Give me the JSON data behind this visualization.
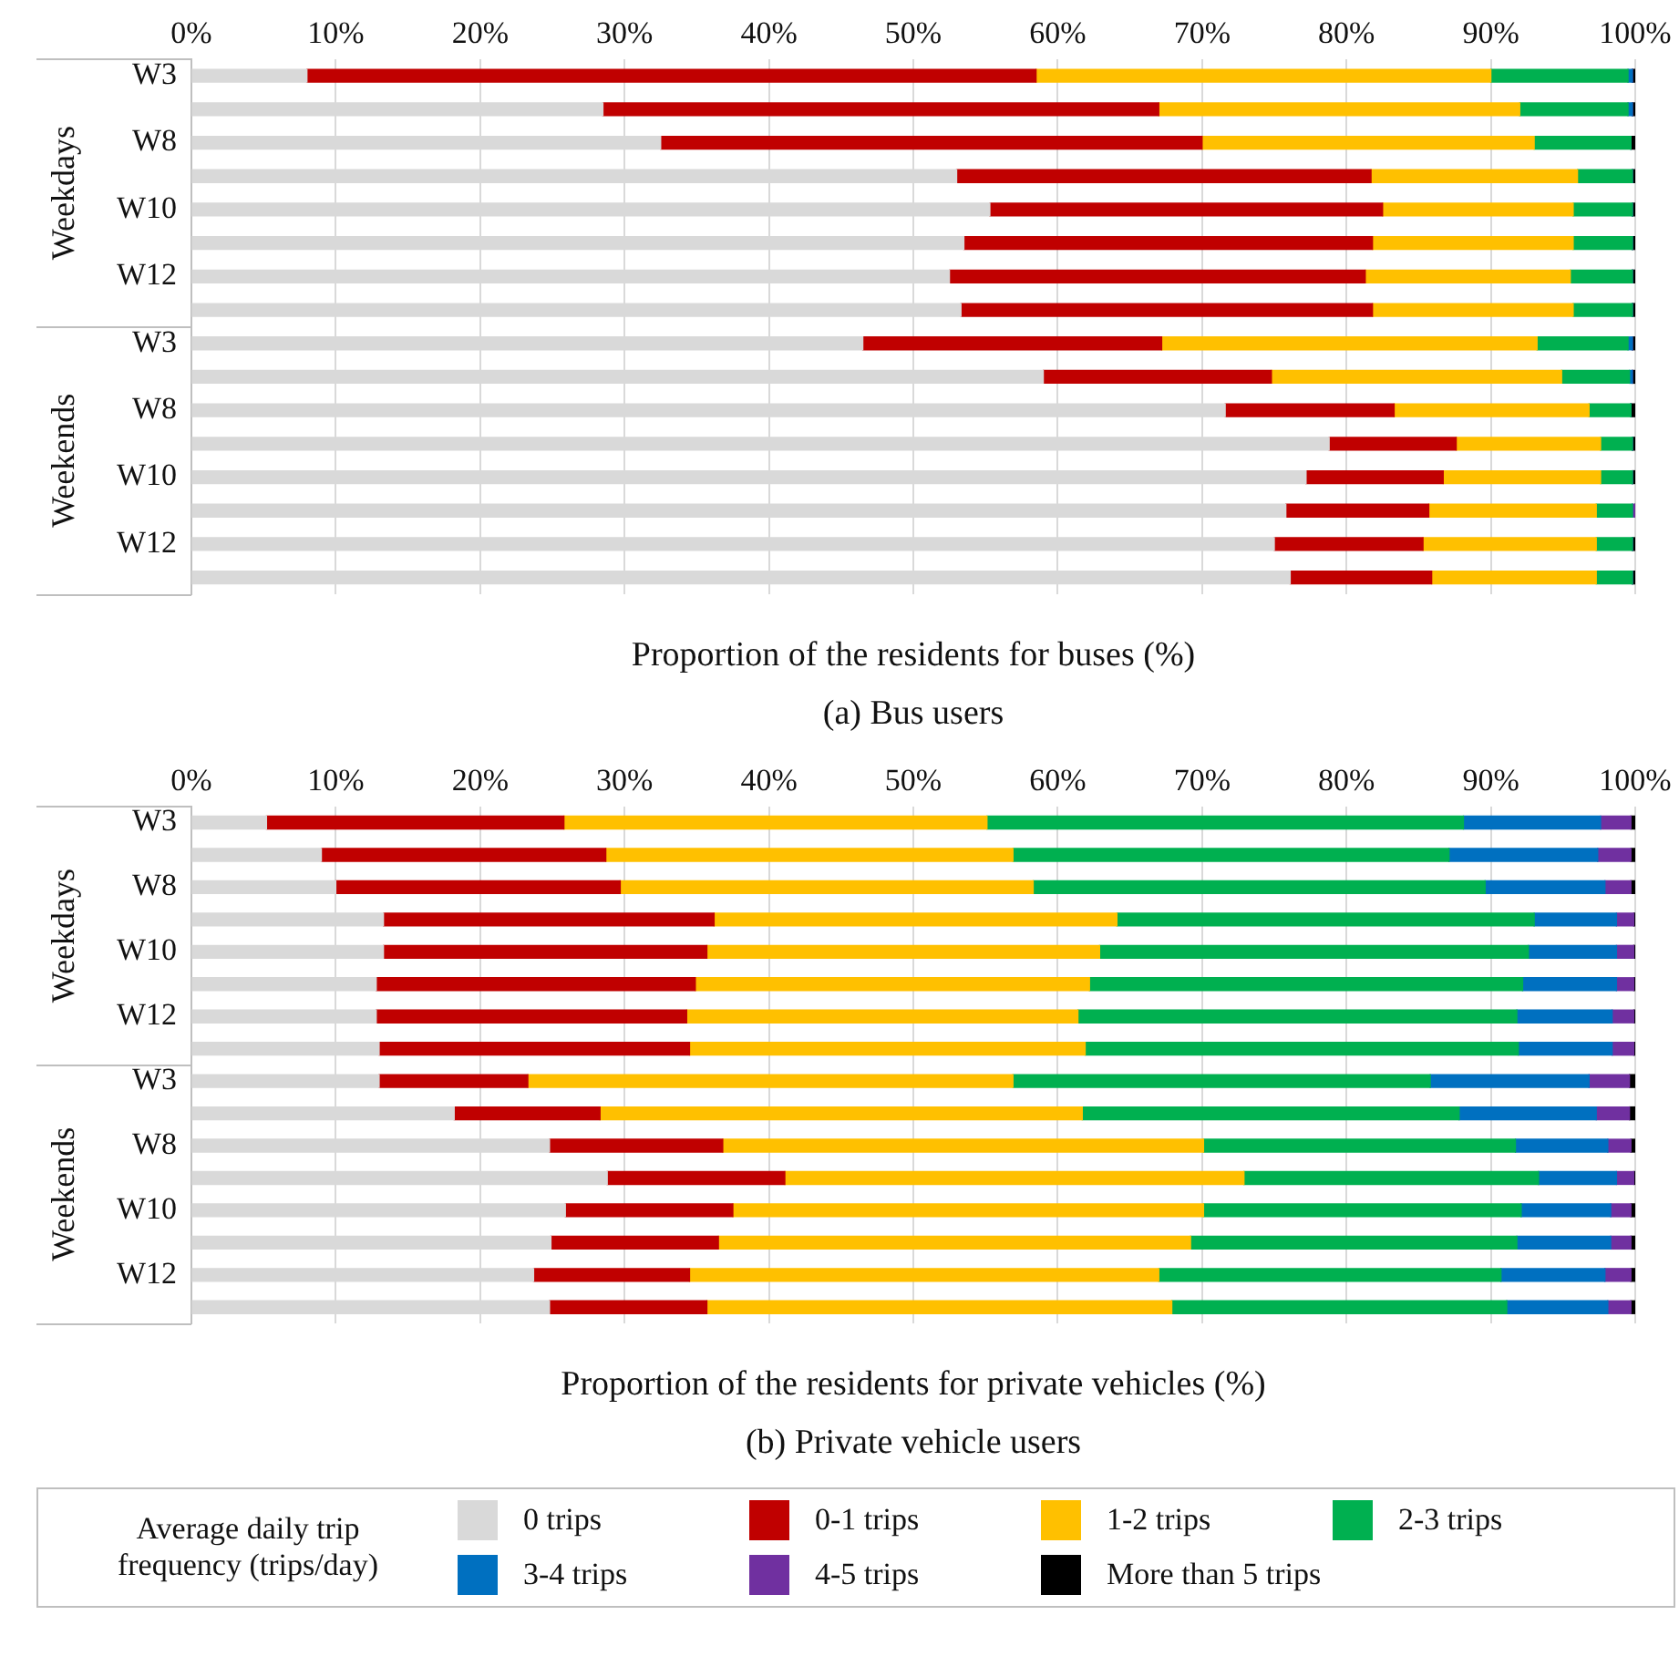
{
  "chart_data": [
    {
      "type": "bar",
      "orientation": "horizontal",
      "stacked": true,
      "title": "(a) Bus users",
      "xlabel": "Proportion of the residents for buses (%)",
      "categories": [
        "W3",
        null,
        "W8",
        null,
        "W10",
        null,
        "W12",
        null,
        "W3",
        null,
        "W8",
        null,
        "W10",
        null,
        "W12",
        null
      ],
      "annotations": [
        "Weekdays",
        "Weekends"
      ],
      "xlim": [
        0,
        100
      ],
      "xticks": [
        {
          "value": 0,
          "label": "0%"
        },
        {
          "value": 10,
          "label": "10%"
        },
        {
          "value": 20,
          "label": "20%"
        },
        {
          "value": 30,
          "label": "30%"
        },
        {
          "value": 40,
          "label": "40%"
        },
        {
          "value": 50,
          "label": "50%"
        },
        {
          "value": 60,
          "label": "60%"
        },
        {
          "value": 70,
          "label": "70%"
        },
        {
          "value": 80,
          "label": "80%"
        },
        {
          "value": 90,
          "label": "90%"
        },
        {
          "value": 100,
          "label": "100%"
        }
      ],
      "grid": "x",
      "legend": false,
      "series": [
        {
          "color": "#d9d9d9",
          "values": [
            8,
            28.5,
            32.5,
            53,
            55.3,
            53.5,
            52.5,
            53.3,
            46.5,
            59,
            71.6,
            78.8,
            77.2,
            75.8,
            75,
            76.1
          ]
        },
        {
          "color": "#c00000",
          "values": [
            50.5,
            38.5,
            37.5,
            28.7,
            27.2,
            28.3,
            28.8,
            28.5,
            20.7,
            15.8,
            11.7,
            8.8,
            9.5,
            9.9,
            10.3,
            9.8
          ]
        },
        {
          "color": "#ffc000",
          "values": [
            31.5,
            25,
            23,
            14.3,
            13.2,
            13.9,
            14.2,
            13.9,
            26,
            20.1,
            13.5,
            10,
            10.9,
            11.6,
            12,
            11.4
          ]
        },
        {
          "color": "#00b050",
          "values": [
            9.5,
            7.5,
            6.7,
            3.8,
            4.1,
            4.1,
            4.3,
            4.1,
            6.3,
            4.7,
            2.9,
            2.2,
            2.2,
            2.5,
            2.5,
            2.5
          ]
        },
        {
          "color": "#0070c0",
          "values": [
            0.3,
            0.3,
            0,
            0,
            0,
            0,
            0,
            0,
            0.3,
            0.2,
            0,
            0,
            0,
            0,
            0,
            0
          ]
        },
        {
          "color": "#7030a0",
          "values": [
            0,
            0,
            0,
            0,
            0,
            0,
            0,
            0,
            0,
            0,
            0,
            0,
            0,
            0.2,
            0,
            0
          ]
        },
        {
          "color": "#000000",
          "values": [
            0.2,
            0.2,
            0.3,
            0.2,
            0.2,
            0.2,
            0.2,
            0.2,
            0.2,
            0.2,
            0.3,
            0.2,
            0.2,
            0,
            0.2,
            0.2
          ]
        }
      ]
    },
    {
      "type": "bar",
      "orientation": "horizontal",
      "stacked": true,
      "title": "(b) Private vehicle users",
      "xlabel": "Proportion of the residents for private vehicles (%)",
      "categories": [
        "W3",
        null,
        "W8",
        null,
        "W10",
        null,
        "W12",
        null,
        "W3",
        null,
        "W8",
        null,
        "W10",
        null,
        "W12",
        null
      ],
      "annotations": [
        "Weekdays",
        "Weekends"
      ],
      "xlim": [
        0,
        100
      ],
      "xticks": [
        {
          "value": 0,
          "label": "0%"
        },
        {
          "value": 10,
          "label": "10%"
        },
        {
          "value": 20,
          "label": "20%"
        },
        {
          "value": 30,
          "label": "30%"
        },
        {
          "value": 40,
          "label": "40%"
        },
        {
          "value": 50,
          "label": "50%"
        },
        {
          "value": 60,
          "label": "60%"
        },
        {
          "value": 70,
          "label": "70%"
        },
        {
          "value": 80,
          "label": "80%"
        },
        {
          "value": 90,
          "label": "90%"
        },
        {
          "value": 100,
          "label": "100%"
        }
      ],
      "grid": "x",
      "legend": "bottom",
      "legend_title": "Average daily trip frequency (trips/day)",
      "series": [
        {
          "name": "0 trips",
          "color": "#d9d9d9",
          "values": [
            5.2,
            9,
            10,
            13.3,
            13.3,
            12.8,
            12.8,
            13,
            13,
            18.2,
            24.8,
            28.8,
            25.9,
            24.9,
            23.7,
            24.8
          ]
        },
        {
          "name": "0-1 trips",
          "color": "#c00000",
          "values": [
            20.6,
            19.7,
            19.7,
            22.9,
            22.4,
            22.1,
            21.5,
            21.5,
            10.3,
            10.1,
            12,
            12.3,
            11.6,
            11.6,
            10.8,
            10.9
          ]
        },
        {
          "name": "1-2 trips",
          "color": "#ffc000",
          "values": [
            29.3,
            28.2,
            28.6,
            27.9,
            27.2,
            27.3,
            27.1,
            27.4,
            33.6,
            33.4,
            33.3,
            31.8,
            32.6,
            32.7,
            32.5,
            32.2
          ]
        },
        {
          "name": "2-3 trips",
          "color": "#00b050",
          "values": [
            33,
            30.2,
            31.3,
            28.9,
            29.7,
            30,
            30.4,
            30,
            28.9,
            26.1,
            21.6,
            20.4,
            22,
            22.6,
            23.7,
            23.2
          ]
        },
        {
          "name": "3-4 trips",
          "color": "#0070c0",
          "values": [
            9.5,
            10.3,
            8.3,
            5.7,
            6.1,
            6.5,
            6.6,
            6.5,
            11,
            9.5,
            6.4,
            5.4,
            6.2,
            6.5,
            7.2,
            7
          ]
        },
        {
          "name": "4-5 trips",
          "color": "#7030a0",
          "values": [
            2.1,
            2.3,
            1.8,
            1.2,
            1.2,
            1.2,
            1.5,
            1.5,
            2.8,
            2.3,
            1.6,
            1.2,
            1.4,
            1.4,
            1.8,
            1.6
          ]
        },
        {
          "name": "More than 5 trips",
          "color": "#000000",
          "values": [
            0.3,
            0.3,
            0.3,
            0.1,
            0.1,
            0.1,
            0.1,
            0.1,
            0.4,
            0.4,
            0.3,
            0.1,
            0.3,
            0.3,
            0.3,
            0.3
          ]
        }
      ]
    }
  ]
}
